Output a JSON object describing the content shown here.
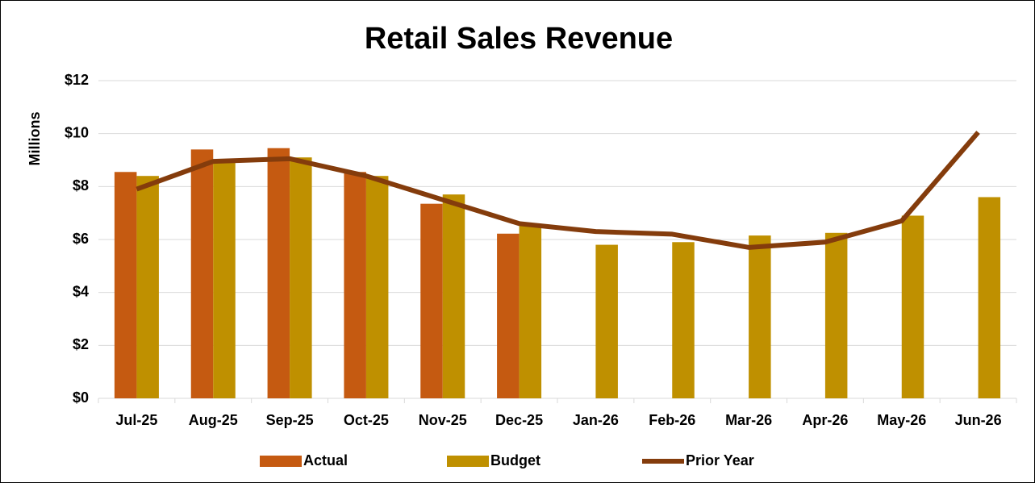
{
  "chart_data": {
    "type": "bar",
    "title": "Retail Sales Revenue",
    "y_label": "Millions",
    "categories": [
      "Jul-25",
      "Aug-25",
      "Sep-25",
      "Oct-25",
      "Nov-25",
      "Dec-25",
      "Jan-26",
      "Feb-26",
      "Mar-26",
      "Apr-26",
      "May-26",
      "Jun-26"
    ],
    "series": [
      {
        "name": "Actual",
        "type": "bar",
        "color": "#c55a11",
        "values": [
          8.55,
          9.4,
          9.45,
          8.55,
          7.35,
          6.22,
          null,
          null,
          null,
          null,
          null,
          null
        ]
      },
      {
        "name": "Budget",
        "type": "bar",
        "color": "#bf9000",
        "values": [
          8.4,
          9.0,
          9.1,
          8.4,
          7.7,
          6.6,
          5.8,
          5.9,
          6.15,
          6.25,
          6.9,
          7.6
        ]
      },
      {
        "name": "Prior Year",
        "type": "line",
        "color": "#843c0c",
        "values": [
          7.9,
          8.95,
          9.05,
          8.4,
          7.5,
          6.6,
          6.3,
          6.2,
          5.7,
          5.9,
          6.7,
          10.05
        ]
      }
    ],
    "ylim": [
      0,
      12
    ],
    "yticks": [
      {
        "value": 0,
        "label": "$0"
      },
      {
        "value": 2,
        "label": "$2"
      },
      {
        "value": 4,
        "label": "$4"
      },
      {
        "value": 6,
        "label": "$6"
      },
      {
        "value": 8,
        "label": "$8"
      },
      {
        "value": 10,
        "label": "$10"
      },
      {
        "value": 12,
        "label": "$12"
      }
    ],
    "grid": true,
    "legend": "bottom"
  }
}
